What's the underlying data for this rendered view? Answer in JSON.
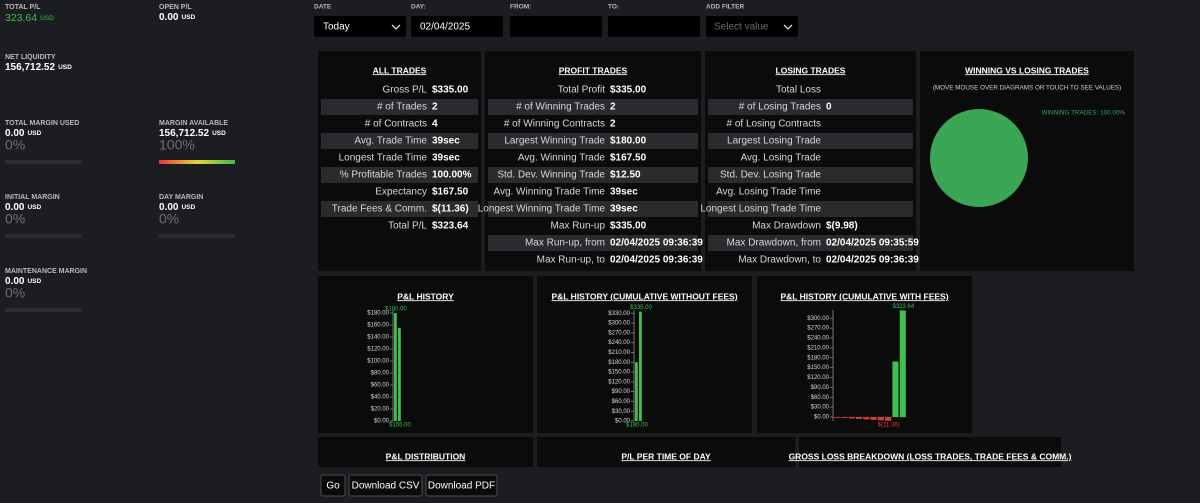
{
  "metrics": [
    {
      "label": "TOTAL P/L",
      "value": "323.64",
      "unit": "USD"
    },
    {
      "label": "OPEN P/L",
      "value": "0.00",
      "unit": "USD"
    },
    {
      "label": "NET LIQUIDITY",
      "value": "156,712.52",
      "unit": "USD"
    },
    {
      "label": "TOTAL MARGIN USED",
      "value": "0.00",
      "unit": "USD",
      "percent": "0%"
    },
    {
      "label": "MARGIN AVAILABLE",
      "value": "156,712.52",
      "unit": "USD",
      "percent": "100%"
    },
    {
      "label": "INITIAL MARGIN",
      "value": "0.00",
      "unit": "USD",
      "percent": "0%"
    },
    {
      "label": "DAY MARGIN",
      "value": "0.00",
      "unit": "USD",
      "percent": "0%"
    },
    {
      "label": "MAINTENANCE MARGIN",
      "value": "0.00",
      "unit": "USD",
      "percent": "0%"
    }
  ],
  "filters": [
    {
      "label": "DATE",
      "value": "Today"
    },
    {
      "label": "DAY:",
      "value": "02/04/2025"
    },
    {
      "label": "FROM:"
    },
    {
      "label": "TO:"
    },
    {
      "label": "ADD FILTER",
      "placeholder": "Select value"
    }
  ],
  "tables": [
    {
      "title": "ALL TRADES",
      "rows": [
        [
          "Gross P/L",
          "$335.00"
        ],
        [
          "# of Trades",
          "2"
        ],
        [
          "# of Contracts",
          "4"
        ],
        [
          "Avg. Trade Time",
          "39sec"
        ],
        [
          "Longest Trade Time",
          "39sec"
        ],
        [
          "% Profitable Trades",
          "100.00%"
        ],
        [
          "Expectancy",
          "$167.50"
        ],
        [
          "Trade Fees & Comm.",
          "$(11.36)"
        ],
        [
          "Total P/L",
          "$323.64"
        ]
      ]
    },
    {
      "title": "PROFIT TRADES",
      "rows": [
        [
          "Total Profit",
          "$335.00"
        ],
        [
          "# of Winning Trades",
          "2"
        ],
        [
          "# of Winning Contracts",
          "2"
        ],
        [
          "Largest Winning Trade",
          "$180.00"
        ],
        [
          "Avg. Winning Trade",
          "$167.50"
        ],
        [
          "Std. Dev. Winning Trade",
          "$12.50"
        ],
        [
          "Avg. Winning Trade Time",
          "39sec"
        ],
        [
          "Longest Winning Trade Time",
          "39sec"
        ],
        [
          "Max Run-up",
          "$335.00"
        ],
        [
          "Max Run-up, from",
          "02/04/2025 09:36:39"
        ],
        [
          "Max Run-up, to",
          "02/04/2025 09:36:39"
        ]
      ]
    },
    {
      "title": "LOSING TRADES",
      "rows": [
        [
          "Total Loss"
        ],
        [
          "# of Losing Trades",
          "0"
        ],
        [
          "# of Losing Contracts"
        ],
        [
          "Largest Losing Trade"
        ],
        [
          "Avg. Losing Trade"
        ],
        [
          "Std. Dev. Losing Trade"
        ],
        [
          "Avg. Losing Trade Time"
        ],
        [
          "Longest Losing Trade Time"
        ],
        [
          "Max Drawdown",
          "$(9.98)"
        ],
        [
          "Max Drawdown, from",
          "02/04/2025 09:35:59"
        ],
        [
          "Max Drawdown, to",
          "02/04/2025 09:36:39"
        ]
      ]
    }
  ],
  "chart_data": [
    {
      "type": "pie",
      "title": "WINNING VS LOSING TRADES",
      "subtitle": "(MOVE MOUSE OVER DIAGRAMS OR TOUCH TO SEE VALUES)",
      "labels": [
        "WINNING TRADES: 100.00%"
      ],
      "values": [
        100
      ],
      "colors": [
        "#3aa655"
      ]
    },
    {
      "type": "bar",
      "title": "P&L HISTORY",
      "values": [
        180,
        155
      ],
      "max_label": "$180.00",
      "min_label": "$155.00",
      "ylim": [
        0,
        185
      ],
      "yticks": [
        {
          "value": 0,
          "label": "$0.00"
        },
        {
          "value": 20,
          "label": "$20.00"
        },
        {
          "value": 40,
          "label": "$40.00"
        },
        {
          "value": 60,
          "label": "$60.00"
        },
        {
          "value": 80,
          "label": "$80.00"
        },
        {
          "value": 100,
          "label": "$100.00"
        },
        {
          "value": 120,
          "label": "$120.00"
        },
        {
          "value": 140,
          "label": "$140.00"
        },
        {
          "value": 160,
          "label": "$160.00"
        },
        {
          "value": 180,
          "label": "$180.00"
        }
      ],
      "color": "#3fbf4f",
      "negative_color": "#e03a3a"
    },
    {
      "type": "bar",
      "title": "P&L HISTORY (CUMULATIVE WITHOUT FEES)",
      "values": [
        180,
        335
      ],
      "max_label": "$335.00",
      "min_label": "$180.00",
      "ylim": [
        0,
        340
      ],
      "yticks": [
        {
          "value": 0,
          "label": "$0.00"
        },
        {
          "value": 30,
          "label": "$30.00"
        },
        {
          "value": 60,
          "label": "$60.00"
        },
        {
          "value": 90,
          "label": "$90.00"
        },
        {
          "value": 120,
          "label": "$120.00"
        },
        {
          "value": 150,
          "label": "$150.00"
        },
        {
          "value": 180,
          "label": "$180.00"
        },
        {
          "value": 210,
          "label": "$210.00"
        },
        {
          "value": 240,
          "label": "$240.00"
        },
        {
          "value": 270,
          "label": "$270.00"
        },
        {
          "value": 300,
          "label": "$300.00"
        },
        {
          "value": 330,
          "label": "$330.00"
        }
      ],
      "color": "#3fbf4f",
      "negative_color": "#e03a3a"
    },
    {
      "type": "bar",
      "title": "P&L HISTORY (CUMULATIVE WITH FEES)",
      "values": [
        -1.42,
        -2.84,
        -4.26,
        -5.68,
        -7.1,
        -8.52,
        -9.94,
        -11.36,
        168.64,
        323.64
      ],
      "max_label": "$323.64",
      "min_label": "$(11.36)",
      "ylim": [
        -12,
        325
      ],
      "yticks": [
        {
          "value": 0,
          "label": "$0.00"
        },
        {
          "value": 30,
          "label": "$30.00"
        },
        {
          "value": 60,
          "label": "$60.00"
        },
        {
          "value": 90,
          "label": "$90.00"
        },
        {
          "value": 120,
          "label": "$120.00"
        },
        {
          "value": 150,
          "label": "$150.00"
        },
        {
          "value": 180,
          "label": "$180.00"
        },
        {
          "value": 210,
          "label": "$210.00"
        },
        {
          "value": 240,
          "label": "$240.00"
        },
        {
          "value": 270,
          "label": "$270.00"
        },
        {
          "value": 300,
          "label": "$300.00"
        }
      ],
      "color": "#3fbf4f",
      "negative_color": "#e03a3a"
    }
  ],
  "panels": [
    "P&L DISTRIBUTION",
    "P/L PER TIME OF DAY",
    "GROSS LOSS BREAKDOWN (LOSS TRADES, TRADE FEES & COMM.)"
  ],
  "buttons": [
    "Go",
    "Download CSV",
    "Download PDF"
  ]
}
